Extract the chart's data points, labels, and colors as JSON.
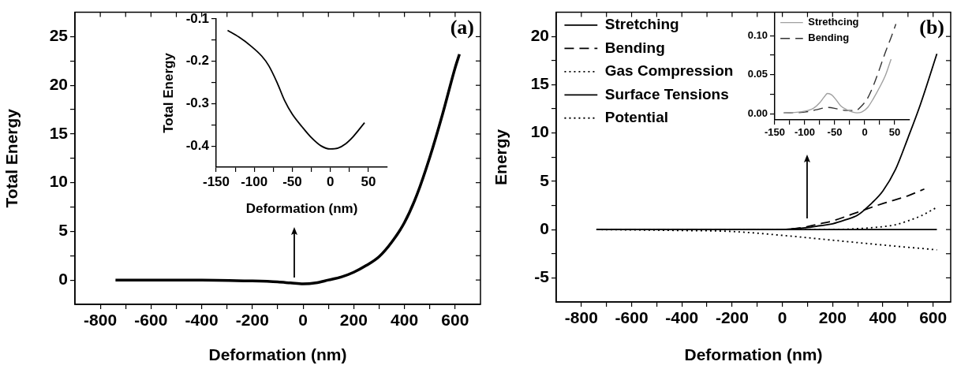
{
  "chart_data": [
    {
      "type": "line",
      "xlabel": "Deformation (nm)",
      "ylabel": "Total Energy",
      "annotations": [
        "(a)"
      ],
      "xlim": [
        -900,
        700
      ],
      "ylim": [
        -2.5,
        27.5
      ],
      "xticks": [
        -800,
        {
          "value": -700,
          "label": null
        },
        -600,
        {
          "value": -500,
          "label": null
        },
        -400,
        {
          "value": -300,
          "label": null
        },
        -200,
        {
          "value": -100,
          "label": null
        },
        0,
        {
          "value": 100,
          "label": null
        },
        200,
        {
          "value": 300,
          "label": null
        },
        400,
        {
          "value": 500,
          "label": null
        },
        600
      ],
      "yticks": [
        0,
        {
          "value": 2.5,
          "label": null
        },
        5,
        {
          "value": 7.5,
          "label": null
        },
        10,
        {
          "value": 12.5,
          "label": null
        },
        15,
        {
          "value": 17.5,
          "label": null
        },
        20,
        {
          "value": 22.5,
          "label": null
        },
        25
      ],
      "grid": false,
      "series": [
        {
          "color": "#000000",
          "line_style": "solid",
          "x": [
            -740,
            -600,
            -400,
            -200,
            -100,
            -50,
            0,
            50,
            100,
            150,
            200,
            250,
            300,
            350,
            400,
            450,
            500,
            550,
            600,
            617
          ],
          "values": [
            0,
            0,
            0,
            -0.1,
            -0.2,
            -0.3,
            -0.4,
            -0.3,
            0,
            0.3,
            0.8,
            1.5,
            2.4,
            3.9,
            5.9,
            8.8,
            12.6,
            17,
            21.8,
            23.2
          ]
        }
      ]
    },
    {
      "type": "line",
      "xlabel": "Deformation (nm)",
      "ylabel": "Total Energy",
      "xlim": [
        -150,
        75
      ],
      "ylim": [
        -0.45,
        -0.1
      ],
      "xticks": [
        -150,
        {
          "value": -125,
          "label": null
        },
        -100,
        {
          "value": -75,
          "label": null
        },
        -50,
        {
          "value": -25,
          "label": null
        },
        0,
        {
          "value": 25,
          "label": null
        },
        50
      ],
      "yticks": [
        -0.4,
        {
          "value": -0.35,
          "label": null
        },
        -0.3,
        {
          "value": -0.25,
          "label": null
        },
        -0.2,
        {
          "value": -0.15,
          "label": null
        },
        -0.1
      ],
      "grid": false,
      "series": [
        {
          "color": "#000000",
          "line_style": "solid",
          "x": [
            -135,
            -120,
            -105,
            -90,
            -81,
            -70,
            -60,
            -50,
            -37,
            -25,
            -12,
            0,
            10,
            20,
            30,
            45
          ],
          "values": [
            -0.127,
            -0.143,
            -0.163,
            -0.188,
            -0.21,
            -0.25,
            -0.293,
            -0.325,
            -0.355,
            -0.38,
            -0.4,
            -0.407,
            -0.405,
            -0.395,
            -0.378,
            -0.345
          ]
        }
      ]
    },
    {
      "type": "line",
      "xlabel": "Deformation (nm)",
      "ylabel": "Energy",
      "annotations": [
        "(b)"
      ],
      "xlim": [
        -900,
        670
      ],
      "ylim": [
        -7.5,
        22.5
      ],
      "xticks": [
        -800,
        {
          "value": -700,
          "label": null
        },
        -600,
        {
          "value": -500,
          "label": null
        },
        -400,
        {
          "value": -300,
          "label": null
        },
        -200,
        {
          "value": -100,
          "label": null
        },
        0,
        {
          "value": 100,
          "label": null
        },
        200,
        {
          "value": 300,
          "label": null
        },
        400,
        {
          "value": 500,
          "label": null
        },
        600
      ],
      "yticks": [
        -5,
        {
          "value": -2.5,
          "label": null
        },
        0,
        {
          "value": 2.5,
          "label": null
        },
        5,
        {
          "value": 7.5,
          "label": null
        },
        10,
        {
          "value": 12.5,
          "label": null
        },
        15,
        {
          "value": 17.5,
          "label": null
        },
        20
      ],
      "grid": false,
      "legend": "top left",
      "series": [
        {
          "name": "Stretching",
          "color": "#000000",
          "line_style": "solid",
          "x": [
            -740,
            0,
            50,
            100,
            150,
            200,
            250,
            300,
            350,
            400,
            450,
            500,
            550,
            615
          ],
          "values": [
            0,
            0,
            0.1,
            0.2,
            0.4,
            0.6,
            1,
            1.5,
            2.6,
            4.0,
            6.2,
            9.5,
            13,
            18.2
          ]
        },
        {
          "name": "Bending",
          "color": "#000000",
          "line_style": "dashed",
          "x": [
            -740,
            0,
            50,
            100,
            150,
            200,
            300,
            400,
            500,
            565
          ],
          "values": [
            0,
            0,
            0.1,
            0.3,
            0.6,
            0.9,
            1.8,
            2.7,
            3.5,
            4.2
          ]
        },
        {
          "name": "Gas Compression",
          "color": "#000000",
          "line_style": "dotted",
          "x": [
            -740,
            150,
            200,
            300,
            400,
            450,
            500,
            550,
            615
          ],
          "values": [
            0,
            0,
            0,
            0.1,
            0.3,
            0.5,
            0.9,
            1.4,
            2.3
          ]
        },
        {
          "name": "Surface Tensions",
          "color": "#000000",
          "line_style": "solid",
          "x": [
            -740,
            615
          ],
          "values": [
            0,
            0
          ]
        },
        {
          "name": "Potential",
          "color": "#000000",
          "line_style": "dotted",
          "x": [
            -740,
            -400,
            -200,
            0,
            200,
            400,
            615
          ],
          "values": [
            0,
            -0.1,
            -0.2,
            -0.6,
            -1.1,
            -1.6,
            -2.1
          ]
        }
      ]
    },
    {
      "type": "line",
      "xlim": [
        -150,
        75
      ],
      "ylim": [
        -0.008,
        0.13
      ],
      "xticks": [
        -150,
        {
          "value": -125,
          "label": null
        },
        -100,
        {
          "value": -75,
          "label": null
        },
        -50,
        {
          "value": -25,
          "label": null
        },
        0,
        {
          "value": 25,
          "label": null
        },
        50
      ],
      "yticks": [
        {
          "value": 0,
          "label": "0.00"
        },
        {
          "value": 0.025,
          "label": null
        },
        {
          "value": 0.05,
          "label": "0.05"
        },
        {
          "value": 0.075,
          "label": null
        },
        {
          "value": 0.1,
          "label": "0.10"
        }
      ],
      "grid": false,
      "legend": "top left",
      "series": [
        {
          "name": "Strethcing",
          "color": "#a0a0a0",
          "line_style": "solid",
          "x": [
            -135,
            -110,
            -95,
            -85,
            -75,
            -68,
            -62,
            -55,
            -48,
            -40,
            -30,
            -20,
            -13,
            -5,
            5,
            15,
            25,
            35,
            44
          ],
          "values": [
            0.001,
            0.002,
            0.004,
            0.007,
            0.014,
            0.021,
            0.026,
            0.024,
            0.018,
            0.01,
            0.005,
            0.002,
            0.001,
            0.002,
            0.008,
            0.02,
            0.034,
            0.05,
            0.07
          ]
        },
        {
          "name": "Bending",
          "color": "#333333",
          "line_style": "dashed",
          "x": [
            -135,
            -100,
            -80,
            -62,
            -45,
            -30,
            -15,
            -5,
            5,
            15,
            25,
            35,
            45,
            52
          ],
          "values": [
            0.001,
            0.002,
            0.005,
            0.008,
            0.006,
            0.004,
            0.004,
            0.01,
            0.02,
            0.037,
            0.058,
            0.08,
            0.1,
            0.115
          ]
        }
      ]
    }
  ]
}
